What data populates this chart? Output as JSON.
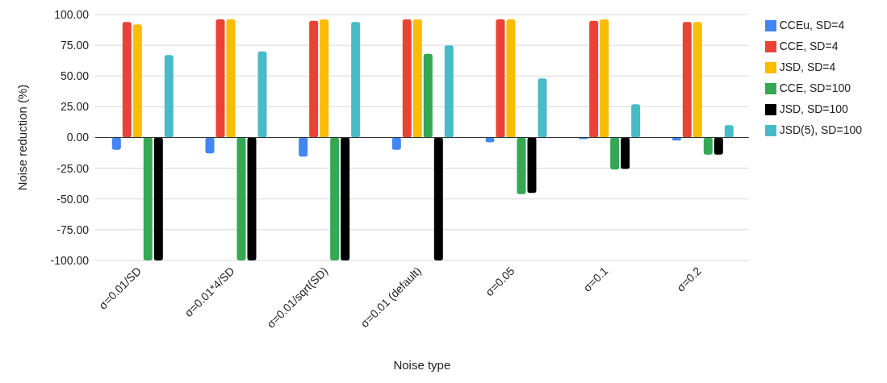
{
  "chart_data": {
    "type": "bar",
    "xlabel": "Noise type",
    "ylabel": "Noise reduction (%)",
    "categories": [
      "σ=0.01/SD",
      "σ=0.01*4/SD",
      "σ=0.01/sqrt(SD)",
      "σ=0.01 (default)",
      "σ=0.05",
      "σ=0.1",
      "σ=0.2"
    ],
    "series": [
      {
        "name": "CCEu, SD=4",
        "color": "#4285f4",
        "values": [
          -10,
          -13,
          -15.5,
          -10,
          -4,
          -1.3,
          -2.5
        ]
      },
      {
        "name": "CCE, SD=4",
        "color": "#ea4335",
        "values": [
          94,
          96,
          95,
          96,
          96,
          95,
          94
        ]
      },
      {
        "name": "JSD, SD=4",
        "color": "#fbbc04",
        "values": [
          92,
          96,
          96,
          96,
          96,
          96,
          94
        ]
      },
      {
        "name": "CCE, SD=100",
        "color": "#34a853",
        "values": [
          -100,
          -100,
          -100,
          68,
          -46,
          -26,
          -14
        ]
      },
      {
        "name": "JSD, SD=100",
        "color": "#000000",
        "values": [
          -100,
          -100,
          -100,
          -100,
          -45,
          -25.5,
          -14
        ]
      },
      {
        "name": "JSD(5), SD=100",
        "color": "#46bdc6",
        "values": [
          67,
          70,
          94,
          75,
          48,
          27,
          10
        ]
      }
    ],
    "ylim": [
      -100,
      100
    ],
    "yticks": [
      {
        "value": -100,
        "label": "-100.00"
      },
      {
        "value": -75,
        "label": "-75.00"
      },
      {
        "value": -50,
        "label": "-50.00"
      },
      {
        "value": -25,
        "label": "-25.00"
      },
      {
        "value": 0,
        "label": "0.00"
      },
      {
        "value": 25,
        "label": "25.00"
      },
      {
        "value": 50,
        "label": "50.00"
      },
      {
        "value": 75,
        "label": "75.00"
      },
      {
        "value": 100,
        "label": "100.00"
      }
    ],
    "grid": "y",
    "legend": "right"
  }
}
